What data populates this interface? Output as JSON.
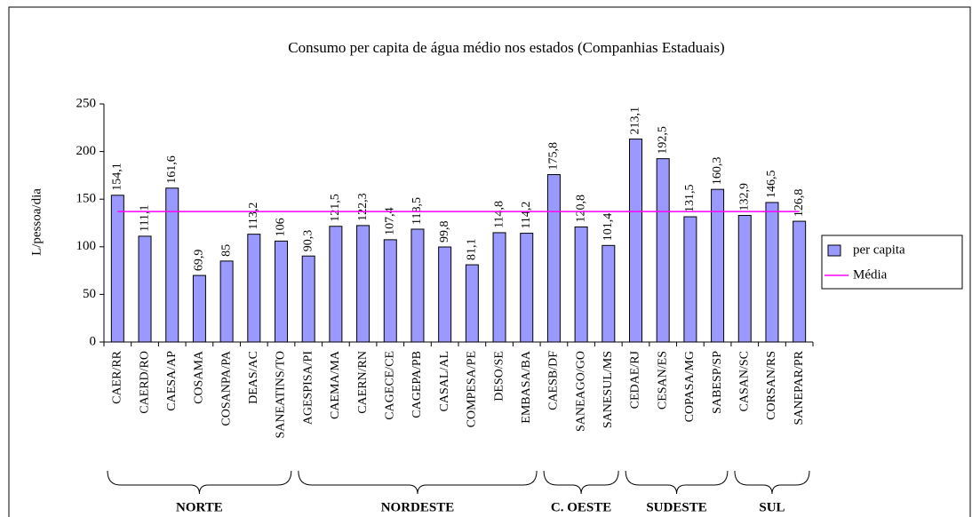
{
  "chart_data": {
    "type": "bar",
    "title": "Consumo per capita de água médio nos estados (Companhias Estaduais)",
    "y_label": "L/pessoa/dia",
    "categories": [
      "CAER/RR",
      "CAERD/RO",
      "CAESA/AP",
      "COSAMA",
      "COSANPA/PA",
      "DEAS/AC",
      "SANEATINS/TO",
      "AGESPISA/PI",
      "CAEMA/MA",
      "CAERN/RN",
      "CAGECE/CE",
      "CAGEPA/PB",
      "CASAL/AL",
      "COMPESA/PE",
      "DESO/SE",
      "EMBASA/BA",
      "CAESB/DF",
      "SANEAGO/GO",
      "SANESUL/MS",
      "CEDAE/RJ",
      "CESAN/ES",
      "COPASA/MG",
      "SABESP/SP",
      "CASAN/SC",
      "CORSAN/RS",
      "SANEPAR/PR"
    ],
    "series": [
      {
        "name": "per capita",
        "color": "#9999ff",
        "values": [
          154.1,
          111.1,
          161.6,
          69.9,
          85,
          113.2,
          106,
          90.3,
          121.5,
          122.3,
          107.4,
          118.5,
          99.8,
          81.1,
          114.8,
          114.2,
          175.8,
          120.8,
          101.4,
          213.1,
          192.5,
          131.5,
          160.3,
          132.9,
          146.5,
          126.8
        ],
        "value_labels": [
          "154,1",
          "111,1",
          "161,6",
          "69,9",
          "85",
          "113,2",
          "106",
          "90,3",
          "121,5",
          "122,3",
          "107,4",
          "118,5",
          "99,8",
          "81,1",
          "114,8",
          "114,2",
          "175,8",
          "120,8",
          "101,4",
          "213,1",
          "192,5",
          "131,5",
          "160,3",
          "132,9",
          "146,5",
          "126,8"
        ]
      },
      {
        "name": "Média",
        "color": "#ff00ff",
        "type": "line",
        "value": 137
      }
    ],
    "groups": [
      {
        "name": "NORTE",
        "size": 7
      },
      {
        "name": "NORDESTE",
        "size": 9
      },
      {
        "name": "C. OESTE",
        "size": 3
      },
      {
        "name": "SUDESTE",
        "size": 4
      },
      {
        "name": "SUL",
        "size": 3
      }
    ],
    "ylim": [
      0,
      250
    ],
    "yticks": [
      0,
      50,
      100,
      150,
      200,
      250
    ],
    "legend": "right"
  }
}
